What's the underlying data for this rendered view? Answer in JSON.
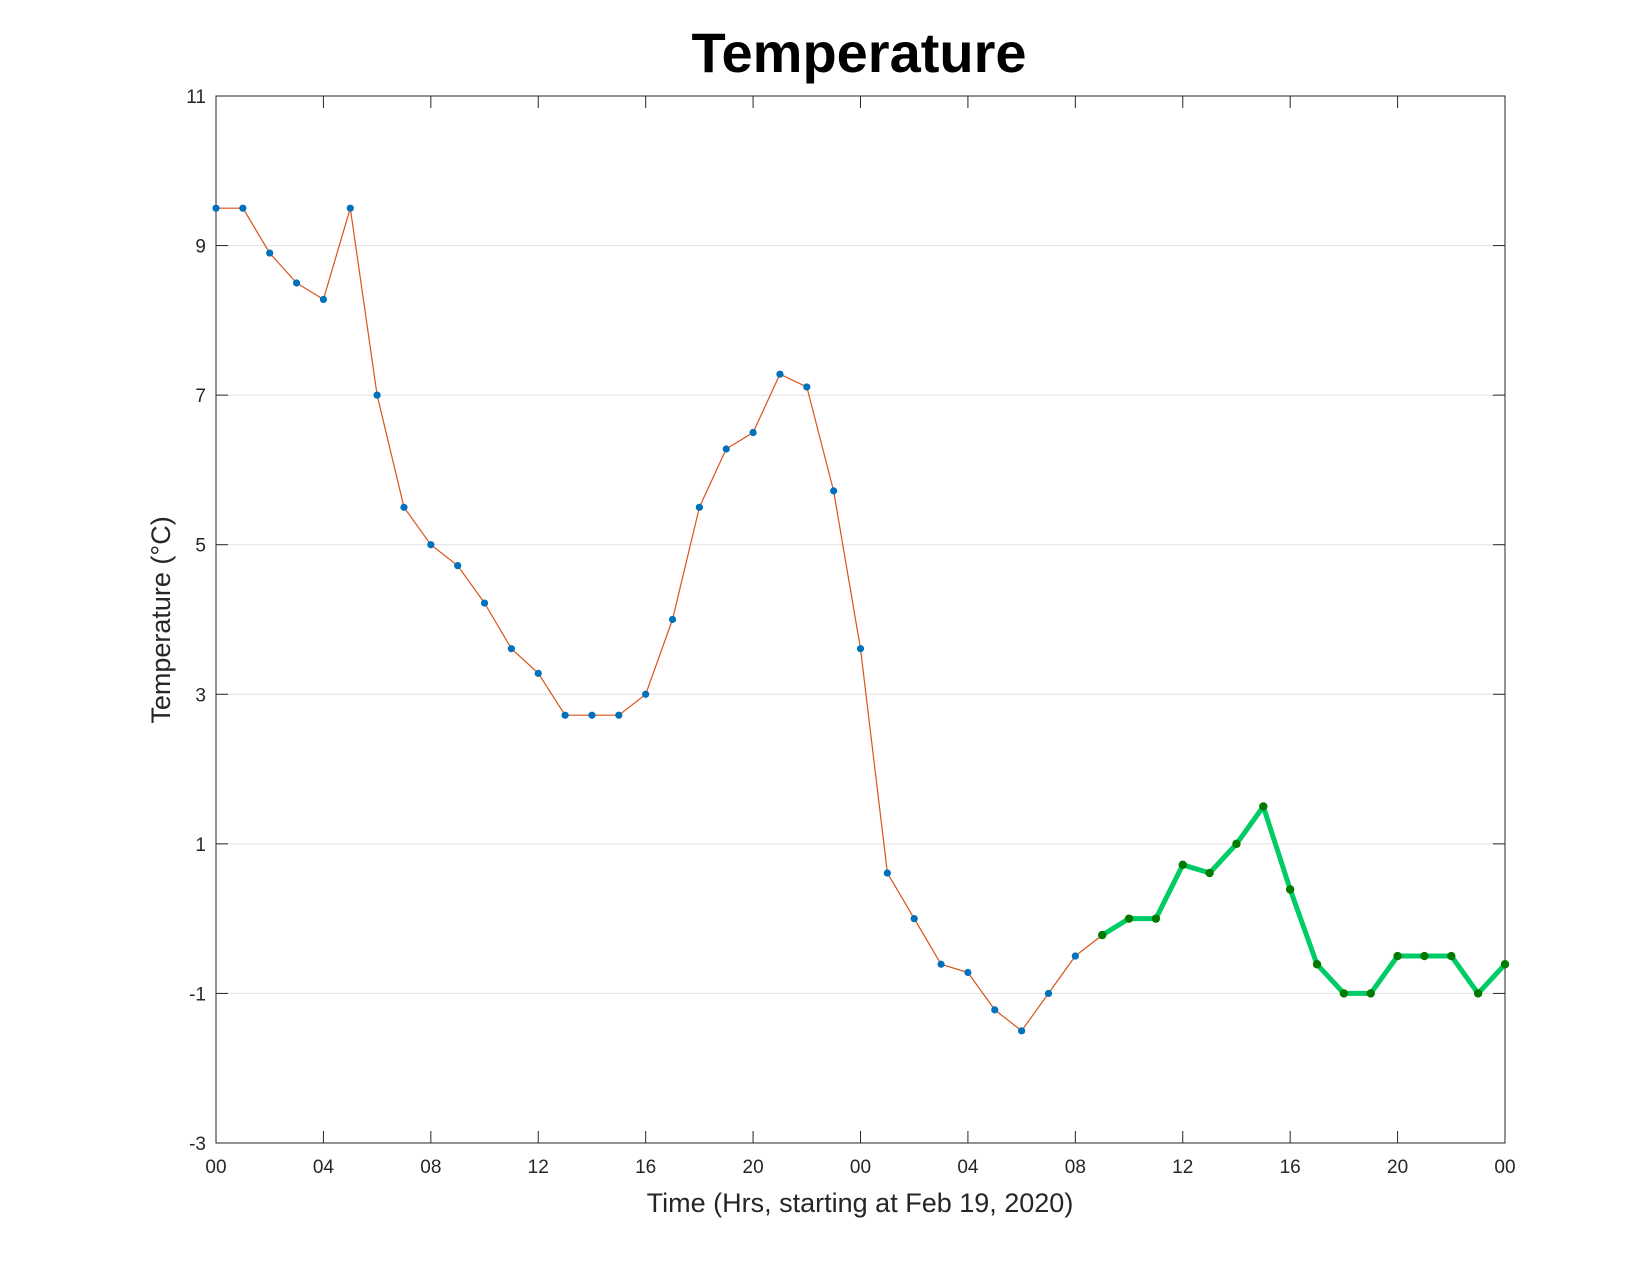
{
  "chart_data": {
    "type": "line",
    "title": "Temperature",
    "xlabel": "Time (Hrs, starting at Feb 19, 2020)",
    "ylabel": "Temperature (°C)",
    "xlim": [
      0,
      48
    ],
    "ylim": [
      -3,
      11
    ],
    "yticks": [
      -3,
      -1,
      1,
      3,
      5,
      7,
      9,
      11
    ],
    "xticks": [
      0,
      4,
      8,
      12,
      16,
      20,
      24,
      28,
      32,
      36,
      40,
      44,
      48
    ],
    "xtick_labels": [
      "00",
      "04",
      "08",
      "12",
      "16",
      "20",
      "00",
      "04",
      "08",
      "12",
      "16",
      "20",
      "00"
    ],
    "grid": "horizontal",
    "legend": "none",
    "series": [
      {
        "style": "observed",
        "line_color": "#D95319",
        "marker_color": "#0072BD",
        "x": [
          0,
          1,
          2,
          3,
          4,
          5,
          6,
          7,
          8,
          9,
          10,
          11,
          12,
          13,
          14,
          15,
          16,
          17,
          18,
          19,
          20,
          21,
          22,
          23,
          24,
          25,
          26,
          27,
          28,
          29,
          30,
          31,
          32,
          33
        ],
        "y": [
          9.5,
          9.5,
          8.9,
          8.5,
          8.28,
          9.5,
          7.0,
          5.5,
          5.0,
          4.72,
          4.22,
          3.61,
          3.28,
          2.72,
          2.72,
          2.72,
          3.0,
          4.0,
          5.5,
          6.28,
          6.5,
          7.28,
          7.11,
          5.72,
          3.61,
          0.61,
          0.0,
          -0.61,
          -0.72,
          -1.22,
          -1.5,
          -1.0,
          -0.5,
          -0.22
        ]
      },
      {
        "style": "forecast",
        "line_color": "#00CC66",
        "marker_color": "#007A00",
        "x": [
          33,
          34,
          35,
          36,
          37,
          38,
          39,
          40,
          41,
          42,
          43,
          44,
          45,
          46,
          47,
          48
        ],
        "y": [
          -0.22,
          0.0,
          0.0,
          0.72,
          0.61,
          1.0,
          1.5,
          0.39,
          -0.61,
          -1.0,
          -1.0,
          -0.5,
          -0.5,
          -0.5,
          -1.0,
          -0.61
        ]
      }
    ]
  }
}
